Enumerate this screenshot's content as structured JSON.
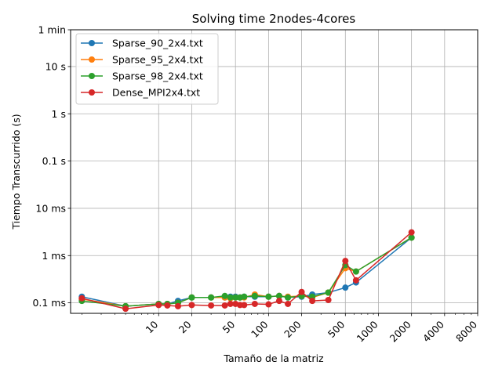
{
  "chart_data": {
    "type": "line",
    "title": "Solving time 2nodes-4cores",
    "xlabel": "Tamaño de la matriz",
    "ylabel": "Tiempo Transcurrido (s)",
    "xscale": "log",
    "yscale": "log",
    "xlim": [
      1.58,
      8000
    ],
    "ylim": [
      6e-05,
      60
    ],
    "x_ticks": [
      {
        "value": 10,
        "label": "10"
      },
      {
        "value": 20,
        "label": "20"
      },
      {
        "value": 50,
        "label": "50"
      },
      {
        "value": 100,
        "label": "100"
      },
      {
        "value": 200,
        "label": "200"
      },
      {
        "value": 500,
        "label": "500"
      },
      {
        "value": 1000,
        "label": "1000"
      },
      {
        "value": 2000,
        "label": "2000"
      },
      {
        "value": 4000,
        "label": "4000"
      },
      {
        "value": 8000,
        "label": "8000"
      }
    ],
    "y_ticks": [
      {
        "value": 0.0001,
        "label": "0.1 ms"
      },
      {
        "value": 0.001,
        "label": "1 ms"
      },
      {
        "value": 0.01,
        "label": "10 ms"
      },
      {
        "value": 0.1,
        "label": "0.1 s"
      },
      {
        "value": 1,
        "label": "1 s"
      },
      {
        "value": 10,
        "label": "10 s"
      },
      {
        "value": 60,
        "label": "1 min"
      }
    ],
    "grid": true,
    "legend_position": "top-left",
    "series": [
      {
        "name": "Sparse_90_2x4.txt",
        "color": "#1f77b4",
        "x": [
          2,
          5,
          10,
          12,
          15,
          20,
          30,
          40,
          45,
          50,
          55,
          60,
          75,
          100,
          125,
          150,
          200,
          250,
          350,
          500,
          625,
          2000
        ],
        "y": [
          0.000135,
          8.5e-05,
          9.5e-05,
          9.5e-05,
          0.00011,
          0.00013,
          0.00013,
          0.00013,
          0.000135,
          0.000135,
          0.00013,
          0.000135,
          0.000135,
          0.000135,
          0.00014,
          0.00013,
          0.000135,
          0.00015,
          0.000165,
          0.00021,
          0.00027,
          0.0024
        ]
      },
      {
        "name": "Sparse_95_2x4.txt",
        "color": "#ff7f0e",
        "x": [
          2,
          5,
          10,
          12,
          15,
          20,
          30,
          40,
          45,
          50,
          55,
          60,
          75,
          100,
          125,
          150,
          200,
          250,
          350,
          500,
          625,
          2000
        ],
        "y": [
          0.00012,
          8.5e-05,
          9.5e-05,
          9.5e-05,
          0.0001,
          0.00013,
          0.00013,
          0.00013,
          0.000125,
          0.00013,
          0.00013,
          0.00013,
          0.00015,
          0.000135,
          0.00014,
          0.000135,
          0.00014,
          0.00013,
          0.000165,
          0.00054,
          0.00046,
          0.0024
        ]
      },
      {
        "name": "Sparse_98_2x4.txt",
        "color": "#2ca02c",
        "x": [
          2,
          5,
          10,
          12,
          15,
          20,
          30,
          40,
          45,
          50,
          55,
          60,
          75,
          100,
          125,
          150,
          200,
          250,
          350,
          500,
          625,
          2000
        ],
        "y": [
          0.00011,
          8.5e-05,
          9.5e-05,
          9.5e-05,
          0.0001,
          0.00013,
          0.00013,
          0.00014,
          0.00013,
          0.00013,
          0.00013,
          0.000135,
          0.00014,
          0.000135,
          0.00014,
          0.00013,
          0.00014,
          0.000135,
          0.000165,
          0.00063,
          0.00046,
          0.0024
        ]
      },
      {
        "name": "Dense_MPI2x4.txt",
        "color": "#d62728",
        "x": [
          2,
          5,
          10,
          12,
          15,
          20,
          30,
          40,
          45,
          50,
          55,
          60,
          75,
          100,
          125,
          150,
          200,
          250,
          350,
          500,
          625,
          2000
        ],
        "y": [
          0.000125,
          7.5e-05,
          9e-05,
          8.8e-05,
          8.5e-05,
          9e-05,
          8.8e-05,
          8.8e-05,
          9.5e-05,
          9.5e-05,
          9e-05,
          9e-05,
          9.5e-05,
          9.3e-05,
          0.00011,
          9.5e-05,
          0.00017,
          0.00011,
          0.000115,
          0.00077,
          0.0003,
          0.0031
        ]
      }
    ]
  }
}
